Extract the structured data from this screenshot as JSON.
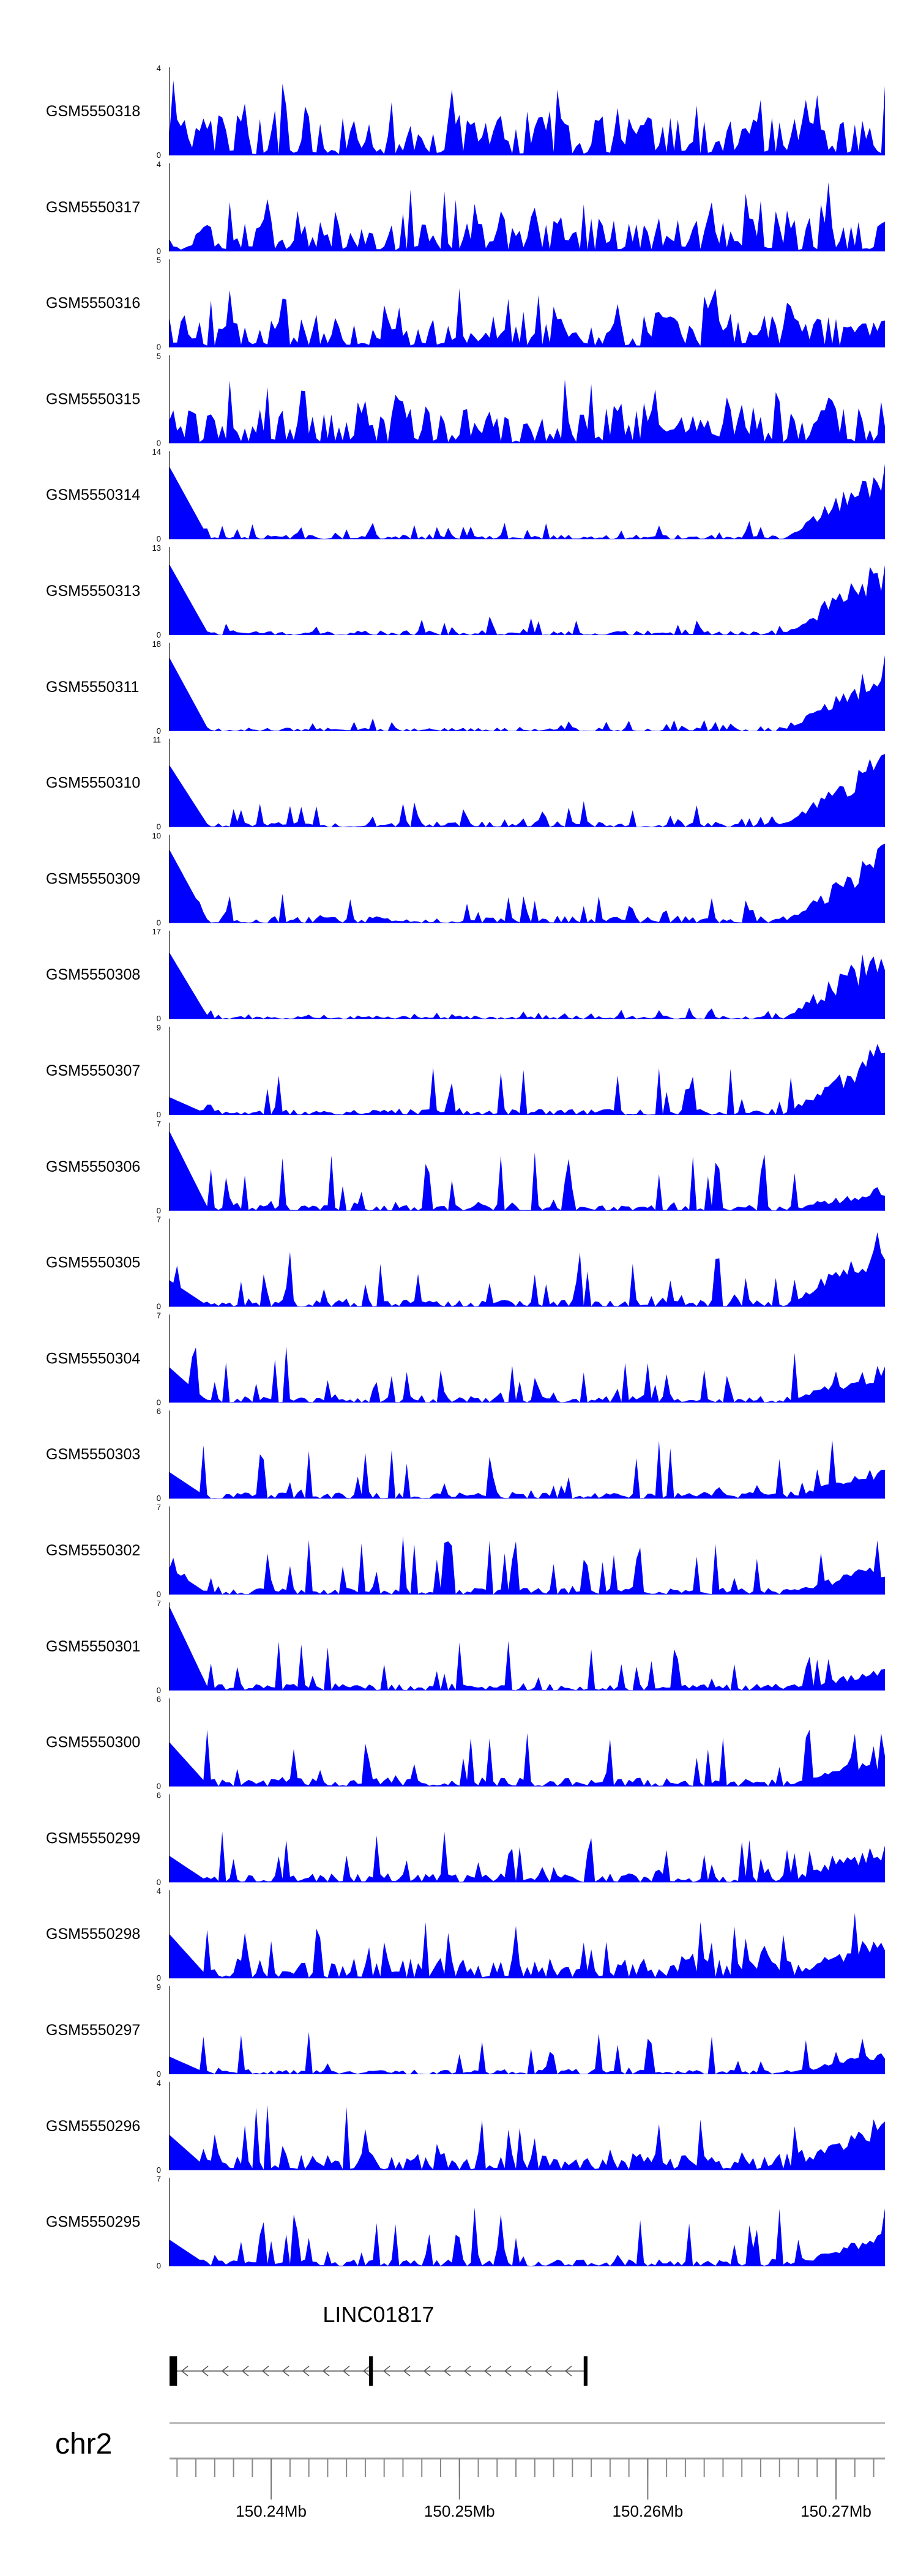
{
  "chart_data": {
    "type": "area",
    "title": "",
    "chromosome": "chr2",
    "x_axis": {
      "xlim": [
        150.2346,
        150.2726
      ],
      "unit": "Mb",
      "tick_labels": [
        "150.24Mb",
        "150.25Mb",
        "150.26Mb",
        "150.27Mb"
      ],
      "tick_values": [
        150.24,
        150.25,
        150.26,
        150.27
      ],
      "minor_tick_values": [
        150.235,
        150.236,
        150.237,
        150.238,
        150.239,
        150.24,
        150.241,
        150.242,
        150.243,
        150.244,
        150.245,
        150.246,
        150.247,
        150.248,
        150.249,
        150.25,
        150.251,
        150.252,
        150.253,
        150.254,
        150.255,
        150.256,
        150.257,
        150.258,
        150.259,
        150.26,
        150.261,
        150.262,
        150.263,
        150.264,
        150.265,
        150.266,
        150.267,
        150.268,
        150.269,
        150.27,
        150.271,
        150.272
      ]
    },
    "color": "#0000ff",
    "n_bins": 190,
    "series": [
      {
        "name": "GSM5550318",
        "ymax": 4,
        "y_ticks": [
          "0",
          "4"
        ],
        "seed": 318,
        "base": 0.34,
        "spread": 0.45,
        "ends": [
          0,
          0
        ]
      },
      {
        "name": "GSM5550317",
        "ymax": 4,
        "y_ticks": [
          "0",
          "4"
        ],
        "seed": 317,
        "base": 0.3,
        "spread": 0.5,
        "ends": [
          0,
          0
        ]
      },
      {
        "name": "GSM5550316",
        "ymax": 5,
        "y_ticks": [
          "0",
          "5"
        ],
        "seed": 316,
        "base": 0.28,
        "spread": 0.5,
        "ends": [
          0,
          0
        ]
      },
      {
        "name": "GSM5550315",
        "ymax": 5,
        "y_ticks": [
          "0",
          "5"
        ],
        "seed": 315,
        "base": 0.3,
        "spread": 0.42,
        "ends": [
          0,
          0
        ]
      },
      {
        "name": "GSM5550314",
        "ymax": 14,
        "y_ticks": [
          "0",
          "14"
        ],
        "seed": 314,
        "base": 0.04,
        "spread": 0.18,
        "ends": [
          0.82,
          0.92
        ]
      },
      {
        "name": "GSM5550313",
        "ymax": 13,
        "y_ticks": [
          "0",
          "13"
        ],
        "seed": 313,
        "base": 0.04,
        "spread": 0.18,
        "ends": [
          0.8,
          0.95
        ]
      },
      {
        "name": "GSM5550311",
        "ymax": 18,
        "y_ticks": [
          "0",
          "18"
        ],
        "seed": 311,
        "base": 0.03,
        "spread": 0.12,
        "ends": [
          0.83,
          0.88
        ]
      },
      {
        "name": "GSM5550310",
        "ymax": 11,
        "y_ticks": [
          "0",
          "11"
        ],
        "seed": 310,
        "base": 0.05,
        "spread": 0.25,
        "ends": [
          0.7,
          0.96
        ]
      },
      {
        "name": "GSM5550309",
        "ymax": 10,
        "y_ticks": [
          "0",
          "10"
        ],
        "seed": 309,
        "base": 0.06,
        "spread": 0.3,
        "ends": [
          0.83,
          0.95
        ]
      },
      {
        "name": "GSM5550308",
        "ymax": 17,
        "y_ticks": [
          "0",
          "17"
        ],
        "seed": 308,
        "base": 0.03,
        "spread": 0.1,
        "ends": [
          0.75,
          0.96
        ]
      },
      {
        "name": "GSM5550307",
        "ymax": 9,
        "y_ticks": [
          "0",
          "9"
        ],
        "seed": 307,
        "base": 0.05,
        "spread": 0.55,
        "ends": [
          0.2,
          0.9
        ]
      },
      {
        "name": "GSM5550306",
        "ymax": 7,
        "y_ticks": [
          "0",
          "7"
        ],
        "seed": 306,
        "base": 0.06,
        "spread": 0.65,
        "ends": [
          0.9,
          0.3
        ]
      },
      {
        "name": "GSM5550305",
        "ymax": 7,
        "y_ticks": [
          "0",
          "7"
        ],
        "seed": 305,
        "base": 0.06,
        "spread": 0.6,
        "ends": [
          0.3,
          0.95
        ]
      },
      {
        "name": "GSM5550304",
        "ymax": 7,
        "y_ticks": [
          "0",
          "7"
        ],
        "seed": 304,
        "base": 0.06,
        "spread": 0.62,
        "ends": [
          0.4,
          0.5
        ]
      },
      {
        "name": "GSM5550303",
        "ymax": 6,
        "y_ticks": [
          "0",
          "6"
        ],
        "seed": 303,
        "base": 0.06,
        "spread": 0.62,
        "ends": [
          0.3,
          0.4
        ]
      },
      {
        "name": "GSM5550302",
        "ymax": 7,
        "y_ticks": [
          "0",
          "7"
        ],
        "seed": 302,
        "base": 0.06,
        "spread": 0.62,
        "ends": [
          0.3,
          0.4
        ]
      },
      {
        "name": "GSM5550301",
        "ymax": 7,
        "y_ticks": [
          "0",
          "7"
        ],
        "seed": 301,
        "base": 0.06,
        "spread": 0.55,
        "ends": [
          0.95,
          0.3
        ]
      },
      {
        "name": "GSM5550300",
        "ymax": 6,
        "y_ticks": [
          "0",
          "6"
        ],
        "seed": 300,
        "base": 0.08,
        "spread": 0.6,
        "ends": [
          0.5,
          0.4
        ]
      },
      {
        "name": "GSM5550299",
        "ymax": 6,
        "y_ticks": [
          "0",
          "6"
        ],
        "seed": 299,
        "base": 0.08,
        "spread": 0.55,
        "ends": [
          0.3,
          0.5
        ]
      },
      {
        "name": "GSM5550298",
        "ymax": 4,
        "y_ticks": [
          "0",
          "4"
        ],
        "seed": 298,
        "base": 0.18,
        "spread": 0.55,
        "ends": [
          0.5,
          0.6
        ]
      },
      {
        "name": "GSM5550297",
        "ymax": 9,
        "y_ticks": [
          "0",
          "9"
        ],
        "seed": 297,
        "base": 0.04,
        "spread": 0.45,
        "ends": [
          0.2,
          0.3
        ]
      },
      {
        "name": "GSM5550296",
        "ymax": 4,
        "y_ticks": [
          "0",
          "4"
        ],
        "seed": 296,
        "base": 0.15,
        "spread": 0.6,
        "ends": [
          0.4,
          0.7
        ]
      },
      {
        "name": "GSM5550295",
        "ymax": 7,
        "y_ticks": [
          "0",
          "7"
        ],
        "seed": 295,
        "base": 0.06,
        "spread": 0.6,
        "ends": [
          0.3,
          0.4
        ]
      }
    ],
    "gene": {
      "name": "LINC01817",
      "strand": "-",
      "exons_mb": [
        [
          150.2346,
          150.235
        ],
        [
          150.2452,
          150.2454
        ],
        [
          150.2566,
          150.2568
        ]
      ]
    },
    "grid": false,
    "legend": "none"
  }
}
